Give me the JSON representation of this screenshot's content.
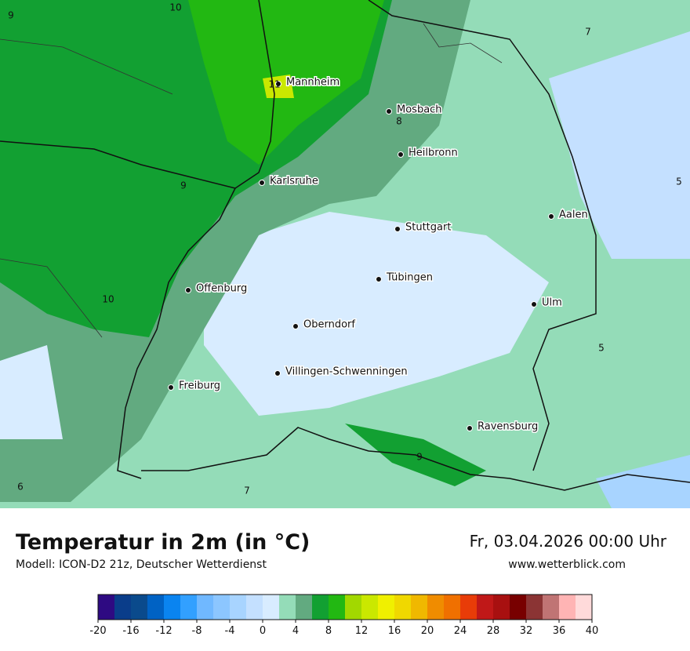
{
  "map": {
    "cities": [
      "Mannheim",
      "Mosbach",
      "Heilbronn",
      "Karlsruhe",
      "Stuttgart",
      "Aalen",
      "Tübingen",
      "Ulm",
      "Offenburg",
      "Oberndorf",
      "Villingen-Schwenningen",
      "Freiburg",
      "Ravensburg"
    ],
    "contour_labels": [
      10,
      9,
      7,
      11,
      8,
      9,
      5,
      10,
      5,
      9,
      6,
      7
    ]
  },
  "footer": {
    "title": "Temperatur in 2m (in °C)",
    "subtitle": "Modell: ICON-D2 21z, Deutscher Wetterdienst",
    "datetime": "Fr, 03.04.2026 00:00 Uhr",
    "website": "www.wetterblick.com"
  },
  "colorbar": {
    "range": [
      -20,
      40
    ],
    "ticks": [
      -20,
      -16,
      -12,
      -8,
      -4,
      0,
      4,
      8,
      12,
      16,
      20,
      24,
      28,
      32,
      36,
      40
    ],
    "colors": [
      "#2e0a82",
      "#0a3d8a",
      "#0a4a8c",
      "#0062c4",
      "#0a84f0",
      "#32a0ff",
      "#70b8ff",
      "#8cc6ff",
      "#a8d4ff",
      "#c4e0ff",
      "#d8ecff",
      "#94dcb8",
      "#62aa80",
      "#12a032",
      "#22b812",
      "#a2d800",
      "#cae800",
      "#f0f000",
      "#f0d800",
      "#f0b800",
      "#f08c00",
      "#f07000",
      "#e83c08",
      "#c01818",
      "#a81010",
      "#780000",
      "#8b3434",
      "#c07474",
      "#ffb4b4",
      "#ffdada"
    ]
  }
}
